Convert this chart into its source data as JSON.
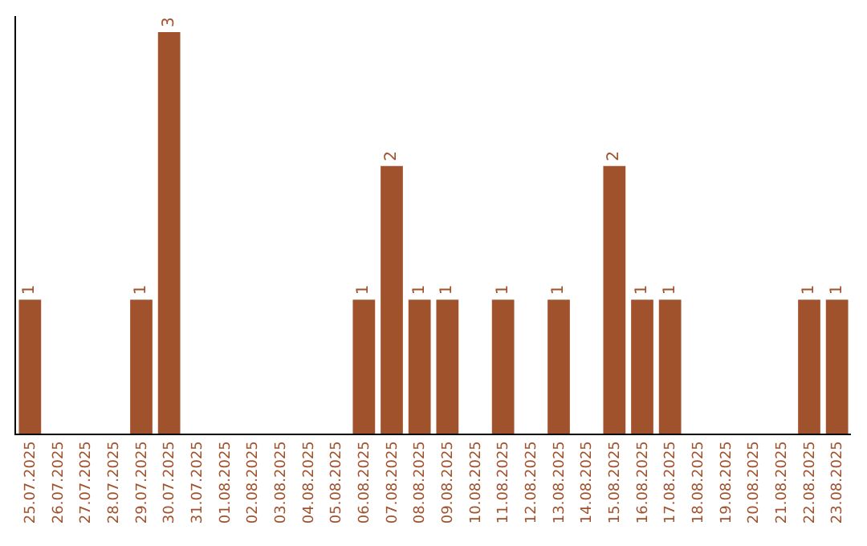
{
  "chart_data": {
    "type": "bar",
    "categories": [
      "25.07.2025",
      "26.07.2025",
      "27.07.2025",
      "28.07.2025",
      "29.07.2025",
      "30.07.2025",
      "31.07.2025",
      "01.08.2025",
      "02.08.2025",
      "03.08.2025",
      "04.08.2025",
      "05.08.2025",
      "06.08.2025",
      "07.08.2025",
      "08.08.2025",
      "09.08.2025",
      "10.08.2025",
      "11.08.2025",
      "12.08.2025",
      "13.08.2025",
      "14.08.2025",
      "15.08.2025",
      "16.08.2025",
      "17.08.2025",
      "18.08.2025",
      "19.08.2025",
      "20.08.2025",
      "21.08.2025",
      "22.08.2025",
      "23.08.2025"
    ],
    "values": [
      1,
      0,
      0,
      0,
      1,
      3,
      0,
      0,
      0,
      0,
      0,
      0,
      1,
      2,
      1,
      1,
      0,
      1,
      0,
      1,
      0,
      2,
      1,
      1,
      0,
      0,
      0,
      0,
      1,
      1
    ],
    "value_labels": [
      "1",
      null,
      null,
      null,
      "1",
      "3",
      null,
      null,
      null,
      null,
      null,
      null,
      "1",
      "2",
      "1",
      "1",
      null,
      "1",
      null,
      "1",
      null,
      "2",
      "1",
      "1",
      null,
      null,
      null,
      null,
      "1",
      "1"
    ],
    "color": "#a0522d",
    "legend": false,
    "tick_labels": "x"
  }
}
